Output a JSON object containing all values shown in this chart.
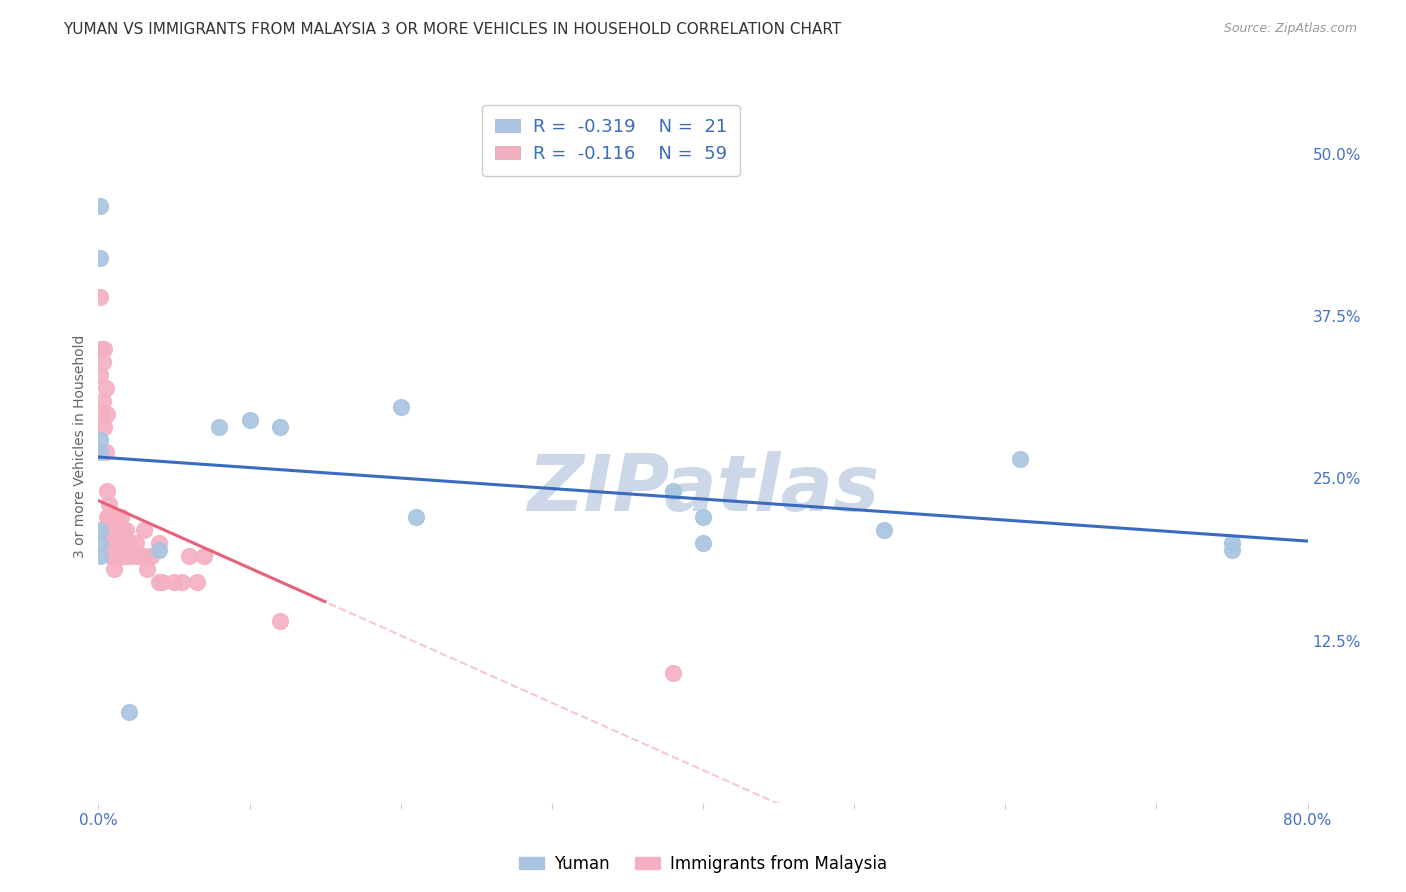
{
  "title": "YUMAN VS IMMIGRANTS FROM MALAYSIA 3 OR MORE VEHICLES IN HOUSEHOLD CORRELATION CHART",
  "source": "Source: ZipAtlas.com",
  "xlabel": "",
  "ylabel": "3 or more Vehicles in Household",
  "legend_bottom": [
    "Yuman",
    "Immigrants from Malaysia"
  ],
  "series": [
    {
      "name": "Yuman",
      "R": -0.319,
      "N": 21,
      "color": "#a8c4e0",
      "line_color": "#3a6bbf",
      "x": [
        0.001,
        0.001,
        0.001,
        0.001,
        0.001,
        0.001,
        0.001,
        0.02,
        0.04,
        0.08,
        0.1,
        0.12,
        0.21,
        0.38,
        0.4,
        0.52,
        0.61,
        0.75,
        0.75,
        0.4,
        0.2
      ],
      "y": [
        0.46,
        0.42,
        0.28,
        0.27,
        0.21,
        0.2,
        0.19,
        0.07,
        0.195,
        0.29,
        0.295,
        0.29,
        0.22,
        0.24,
        0.22,
        0.21,
        0.265,
        0.2,
        0.195,
        0.2,
        0.305
      ]
    },
    {
      "name": "Immigrants from Malaysia",
      "R": -0.116,
      "N": 59,
      "color": "#f4b0c0",
      "line_color": "#e8607a",
      "x": [
        0.001,
        0.001,
        0.002,
        0.002,
        0.003,
        0.003,
        0.004,
        0.004,
        0.005,
        0.005,
        0.006,
        0.006,
        0.006,
        0.007,
        0.007,
        0.007,
        0.008,
        0.008,
        0.008,
        0.008,
        0.009,
        0.009,
        0.01,
        0.01,
        0.01,
        0.01,
        0.01,
        0.01,
        0.012,
        0.012,
        0.012,
        0.012,
        0.014,
        0.014,
        0.015,
        0.015,
        0.016,
        0.016,
        0.018,
        0.018,
        0.02,
        0.022,
        0.025,
        0.025,
        0.028,
        0.03,
        0.03,
        0.032,
        0.035,
        0.04,
        0.04,
        0.042,
        0.05,
        0.055,
        0.06,
        0.065,
        0.07,
        0.12,
        0.38
      ],
      "y": [
        0.39,
        0.33,
        0.35,
        0.3,
        0.34,
        0.31,
        0.35,
        0.29,
        0.32,
        0.27,
        0.3,
        0.24,
        0.22,
        0.23,
        0.22,
        0.21,
        0.22,
        0.21,
        0.2,
        0.19,
        0.21,
        0.2,
        0.22,
        0.21,
        0.2,
        0.2,
        0.19,
        0.18,
        0.22,
        0.21,
        0.2,
        0.19,
        0.21,
        0.19,
        0.22,
        0.2,
        0.21,
        0.19,
        0.21,
        0.19,
        0.2,
        0.19,
        0.2,
        0.19,
        0.19,
        0.21,
        0.19,
        0.18,
        0.19,
        0.2,
        0.17,
        0.17,
        0.17,
        0.17,
        0.19,
        0.17,
        0.19,
        0.14,
        0.1
      ]
    }
  ],
  "xlim": [
    0.0,
    0.8
  ],
  "ylim": [
    0.0,
    0.55
  ],
  "xticks": [
    0.0,
    0.1,
    0.2,
    0.3,
    0.4,
    0.5,
    0.6,
    0.7,
    0.8
  ],
  "xticklabels": [
    "0.0%",
    "",
    "",
    "",
    "",
    "",
    "",
    "",
    "80.0%"
  ],
  "yticks_right": [
    0.125,
    0.25,
    0.375,
    0.5
  ],
  "yticklabels_right": [
    "12.5%",
    "25.0%",
    "37.5%",
    "50.0%"
  ],
  "grid_color": "#d8d8d8",
  "background_color": "#ffffff",
  "title_fontsize": 11,
  "watermark": "ZIPatlas",
  "watermark_color": "#ccd8e8"
}
